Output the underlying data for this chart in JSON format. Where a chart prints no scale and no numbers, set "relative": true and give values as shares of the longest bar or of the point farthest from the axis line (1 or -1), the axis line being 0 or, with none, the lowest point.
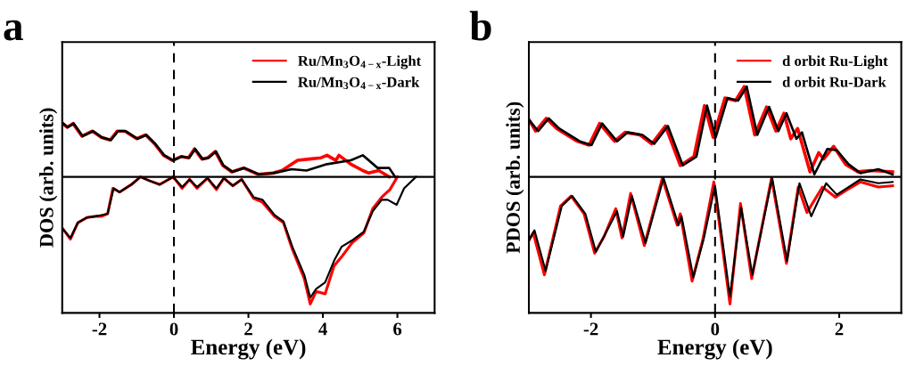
{
  "chart_data": [
    {
      "type": "line",
      "title": "a",
      "xlabel": "Energy (eV)",
      "ylabel": "DOS (arb. units)",
      "relative": true,
      "xlim": [
        -3,
        7
      ],
      "xticks": [
        -2,
        0,
        2,
        4,
        6
      ],
      "legend": "top right",
      "ref_lines": [
        {
          "axis": "x",
          "value": 0,
          "color": "#000000",
          "line_style": "dashed"
        }
      ],
      "series": [
        {
          "name": "Ru/Mn$_{3}$O$_{4−x}$-Light",
          "color": "#ff0000",
          "x": [
            -2.99,
            -2.87,
            -2.71,
            -2.47,
            -2.19,
            -1.95,
            -1.71,
            -1.52,
            -1.32,
            -1.0,
            -0.76,
            -0.52,
            -0.28,
            -0.04,
            0.19,
            0.39,
            0.55,
            0.75,
            0.91,
            1.11,
            1.31,
            1.55,
            1.87,
            2.26,
            2.66,
            2.9,
            3.32,
            3.63,
            3.95,
            4.11,
            4.35,
            4.43,
            4.75,
            5.07,
            5.23,
            5.5,
            5.78
          ],
          "values": [
            0.42,
            0.39,
            0.42,
            0.32,
            0.36,
            0.31,
            0.29,
            0.36,
            0.36,
            0.3,
            0.33,
            0.26,
            0.17,
            0.13,
            0.16,
            0.15,
            0.22,
            0.14,
            0.15,
            0.2,
            0.09,
            0.04,
            0.07,
            0.02,
            0.03,
            0.05,
            0.13,
            0.14,
            0.15,
            0.17,
            0.13,
            0.17,
            0.1,
            0.05,
            0.03,
            0.05,
            0.0
          ]
        },
        {
          "color": "#ff0000",
          "x": [
            -2.98,
            -2.78,
            -2.58,
            -2.34,
            -2.1,
            -1.94,
            -1.78,
            -1.64,
            -1.46,
            -1.14,
            -0.9,
            -0.66,
            -0.38,
            -0.02,
            0.22,
            0.42,
            0.62,
            0.9,
            1.14,
            1.34,
            1.58,
            1.82,
            2.14,
            2.38,
            2.7,
            2.94,
            3.18,
            3.5,
            3.66,
            3.82,
            4.06,
            4.3,
            4.5,
            4.78,
            5.1,
            5.34,
            5.58,
            5.8,
            6.0
          ],
          "values": [
            -0.41,
            -0.49,
            -0.36,
            -0.32,
            -0.31,
            -0.31,
            -0.29,
            -0.09,
            -0.12,
            -0.06,
            0.0,
            -0.03,
            -0.06,
            0.0,
            -0.09,
            -0.02,
            -0.09,
            -0.01,
            -0.1,
            -0.01,
            -0.07,
            -0.02,
            -0.17,
            -0.2,
            -0.31,
            -0.36,
            -0.57,
            -0.8,
            -1.0,
            -0.9,
            -0.92,
            -0.7,
            -0.63,
            -0.52,
            -0.44,
            -0.25,
            -0.16,
            -0.1,
            0.0
          ]
        },
        {
          "name": "Ru/Mn$_{3}$O$_{4−x}$-Dark",
          "color": "#000000",
          "x": [
            -2.97,
            -2.85,
            -2.69,
            -2.45,
            -2.17,
            -1.93,
            -1.69,
            -1.5,
            -1.3,
            -0.98,
            -0.74,
            -0.5,
            -0.26,
            -0.02,
            0.21,
            0.41,
            0.57,
            0.77,
            0.93,
            1.13,
            1.33,
            1.57,
            1.89,
            2.28,
            2.68,
            3.16,
            3.56,
            4.11,
            4.75,
            5.07,
            5.47,
            5.78,
            5.94
          ],
          "values": [
            0.42,
            0.39,
            0.42,
            0.32,
            0.36,
            0.31,
            0.29,
            0.36,
            0.36,
            0.3,
            0.33,
            0.26,
            0.17,
            0.13,
            0.16,
            0.15,
            0.22,
            0.14,
            0.15,
            0.2,
            0.09,
            0.04,
            0.07,
            0.02,
            0.03,
            0.06,
            0.05,
            0.1,
            0.13,
            0.17,
            0.07,
            0.07,
            0.0
          ]
        },
        {
          "color": "#000000",
          "x": [
            -2.98,
            -2.78,
            -2.58,
            -2.34,
            -2.1,
            -1.94,
            -1.78,
            -1.62,
            -1.46,
            -1.14,
            -0.9,
            -0.66,
            -0.38,
            -0.02,
            0.22,
            0.42,
            0.62,
            0.9,
            1.14,
            1.34,
            1.58,
            1.82,
            2.14,
            2.38,
            2.7,
            2.94,
            3.18,
            3.5,
            3.66,
            3.82,
            4.06,
            4.3,
            4.5,
            4.78,
            5.1,
            5.34,
            5.58,
            5.74,
            5.98,
            6.18,
            6.5
          ],
          "values": [
            -0.41,
            -0.48,
            -0.36,
            -0.32,
            -0.31,
            -0.3,
            -0.29,
            -0.09,
            -0.12,
            -0.06,
            0.0,
            -0.03,
            -0.06,
            0.0,
            -0.08,
            -0.02,
            -0.08,
            -0.01,
            -0.09,
            -0.01,
            -0.07,
            -0.02,
            -0.16,
            -0.18,
            -0.3,
            -0.35,
            -0.55,
            -0.77,
            -0.95,
            -0.88,
            -0.83,
            -0.66,
            -0.55,
            -0.5,
            -0.43,
            -0.27,
            -0.18,
            -0.18,
            -0.22,
            -0.09,
            0.0
          ]
        }
      ]
    },
    {
      "type": "line",
      "title": "b",
      "xlabel": "Energy (eV)",
      "ylabel": "PDOS (arb. units)",
      "relative": true,
      "xlim": [
        -3,
        3
      ],
      "xticks": [
        -2,
        0,
        2
      ],
      "legend": "top right",
      "ref_lines": [
        {
          "axis": "x",
          "value": 0,
          "color": "#000000",
          "line_style": "dashed"
        }
      ],
      "series": [
        {
          "name": "d orbit Ru-Light",
          "color": "#ff0000",
          "x": [
            -3.0,
            -2.89,
            -2.72,
            -2.55,
            -2.22,
            -2.03,
            -1.86,
            -1.62,
            -1.45,
            -1.21,
            -1.02,
            -0.8,
            -0.56,
            -0.34,
            -0.17,
            -0.03,
            0.16,
            0.33,
            0.47,
            0.64,
            0.83,
            0.98,
            1.11,
            1.22,
            1.33,
            1.53,
            1.67,
            1.75,
            1.91,
            2.1,
            2.3,
            2.5,
            2.86
          ],
          "values": [
            0.45,
            0.36,
            0.46,
            0.38,
            0.28,
            0.25,
            0.42,
            0.28,
            0.35,
            0.33,
            0.26,
            0.4,
            0.09,
            0.16,
            0.56,
            0.31,
            0.62,
            0.6,
            0.71,
            0.33,
            0.55,
            0.36,
            0.5,
            0.3,
            0.38,
            0.04,
            0.19,
            0.14,
            0.24,
            0.1,
            0.04,
            0.05,
            0.04
          ]
        },
        {
          "color": "#ff0000",
          "x": [
            -3.0,
            -2.93,
            -2.75,
            -2.49,
            -2.32,
            -2.11,
            -1.94,
            -1.79,
            -1.6,
            -1.5,
            -1.36,
            -1.14,
            -0.85,
            -0.61,
            -0.56,
            -0.37,
            -0.2,
            -0.02,
            0.24,
            0.41,
            0.59,
            0.91,
            1.15,
            1.34,
            1.48,
            1.73,
            1.94,
            2.13,
            2.34,
            2.63,
            2.86
          ],
          "values": [
            -0.5,
            -0.44,
            -0.77,
            -0.23,
            -0.15,
            -0.29,
            -0.6,
            -0.47,
            -0.25,
            -0.48,
            -0.13,
            -0.54,
            -0.01,
            -0.38,
            -0.29,
            -0.82,
            -0.5,
            -0.04,
            -1.0,
            -0.21,
            -0.8,
            -0.01,
            -0.68,
            -0.08,
            -0.28,
            -0.08,
            -0.16,
            -0.1,
            -0.04,
            -0.08,
            -0.07
          ]
        },
        {
          "name": "d orbit Ru-Dark",
          "color": "#000000",
          "x": [
            -3.0,
            -2.85,
            -2.68,
            -2.51,
            -2.18,
            -1.99,
            -1.82,
            -1.58,
            -1.41,
            -1.17,
            -0.98,
            -0.76,
            -0.52,
            -0.3,
            -0.13,
            0.01,
            0.2,
            0.37,
            0.51,
            0.68,
            0.87,
            1.02,
            1.15,
            1.31,
            1.4,
            1.6,
            1.81,
            1.96,
            2.15,
            2.34,
            2.63,
            2.86
          ],
          "values": [
            0.45,
            0.36,
            0.46,
            0.38,
            0.28,
            0.25,
            0.42,
            0.28,
            0.35,
            0.33,
            0.26,
            0.4,
            0.09,
            0.16,
            0.56,
            0.31,
            0.62,
            0.6,
            0.71,
            0.33,
            0.55,
            0.36,
            0.5,
            0.3,
            0.35,
            0.02,
            0.22,
            0.21,
            0.1,
            0.03,
            0.06,
            0.02
          ]
        },
        {
          "color": "#000000",
          "x": [
            -3.0,
            -2.91,
            -2.73,
            -2.47,
            -2.3,
            -2.09,
            -1.92,
            -1.77,
            -1.58,
            -1.48,
            -1.34,
            -1.12,
            -0.83,
            -0.59,
            -0.54,
            -0.35,
            -0.18,
            0.0,
            0.24,
            0.42,
            0.6,
            0.92,
            1.16,
            1.36,
            1.55,
            1.79,
            1.96,
            2.15,
            2.34,
            2.63,
            2.86
          ],
          "values": [
            -0.5,
            -0.42,
            -0.74,
            -0.23,
            -0.15,
            -0.29,
            -0.59,
            -0.45,
            -0.27,
            -0.47,
            -0.15,
            -0.52,
            -0.01,
            -0.38,
            -0.31,
            -0.79,
            -0.48,
            -0.07,
            -0.94,
            -0.24,
            -0.77,
            -0.01,
            -0.66,
            -0.05,
            -0.31,
            -0.05,
            -0.14,
            -0.08,
            -0.02,
            -0.05,
            -0.04
          ]
        }
      ]
    }
  ]
}
